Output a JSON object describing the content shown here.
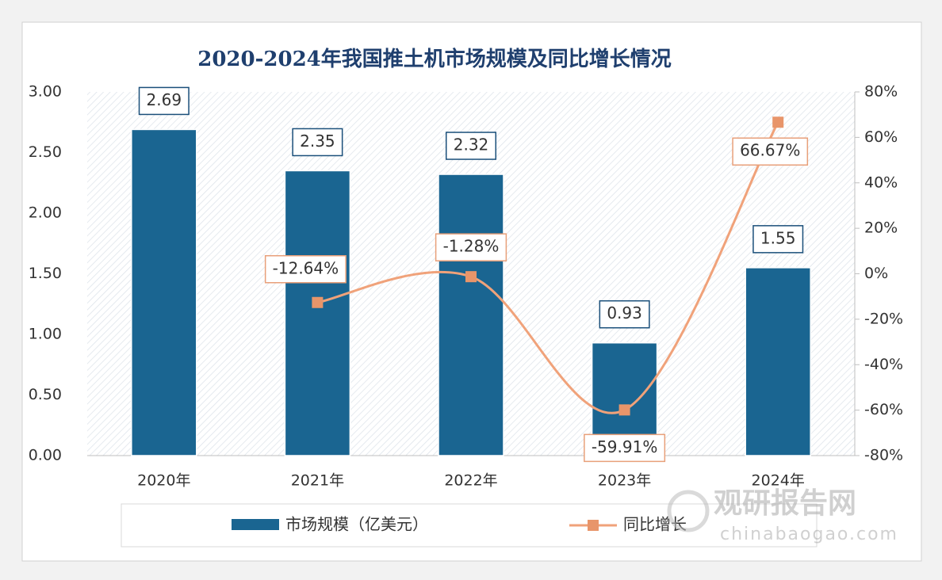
{
  "chart_data": {
    "type": "bar-line",
    "title": "2020-2024年我国推土机市场规模及同比增长情况",
    "categories": [
      "2020年",
      "2021年",
      "2022年",
      "2023年",
      "2024年"
    ],
    "series": [
      {
        "name": "市场规模（亿美元）",
        "type": "bar",
        "color": "#1a6591",
        "values": [
          2.69,
          2.35,
          2.32,
          0.93,
          1.55
        ]
      },
      {
        "name": "同比增长",
        "type": "line",
        "axis": "y2",
        "color": "#f0a27a",
        "values": [
          null,
          -12.64,
          -1.28,
          -59.91,
          66.67
        ],
        "value_labels": [
          null,
          "-12.64%",
          "-1.28%",
          "-59.91%",
          "66.67%"
        ]
      }
    ],
    "ylim": [
      0,
      3
    ],
    "yticks": [
      {
        "value": 0,
        "label": "0.00"
      },
      {
        "value": 0.5,
        "label": "0.50"
      },
      {
        "value": 1,
        "label": "1.00"
      },
      {
        "value": 1.5,
        "label": "1.50"
      },
      {
        "value": 2,
        "label": "2.00"
      },
      {
        "value": 2.5,
        "label": "2.50"
      },
      {
        "value": 3,
        "label": "3.00"
      }
    ],
    "y2lim": [
      -80,
      80
    ],
    "y2ticks": [
      {
        "value": -80,
        "label": "-80%"
      },
      {
        "value": -60,
        "label": "-60%"
      },
      {
        "value": -40,
        "label": "-40%"
      },
      {
        "value": -20,
        "label": "-20%"
      },
      {
        "value": 0,
        "label": "0%"
      },
      {
        "value": 20,
        "label": "20%"
      },
      {
        "value": 40,
        "label": "40%"
      },
      {
        "value": 60,
        "label": "60%"
      },
      {
        "value": 80,
        "label": "80%"
      }
    ],
    "legend": "bottom",
    "watermark": {
      "title": "观研报告网",
      "url": "chinabaogao.com"
    }
  }
}
